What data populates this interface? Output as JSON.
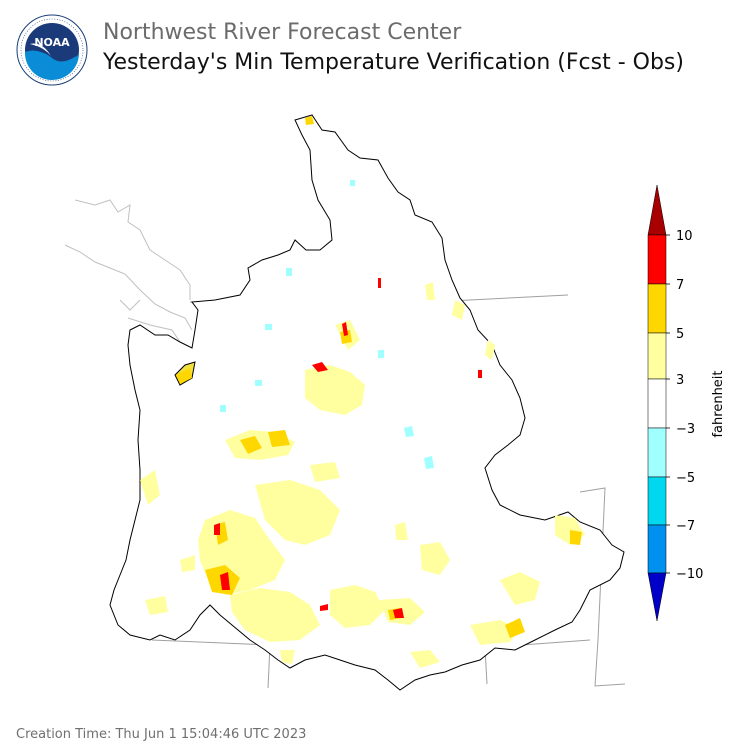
{
  "header": {
    "org_name": "Northwest River Forecast Center",
    "title": "Yesterday's Min Temperature Verification (Fcst - Obs)"
  },
  "logo": {
    "text": "NOAA",
    "icon": "noaa-logo-icon"
  },
  "legend": {
    "unit": "fahrenheit",
    "ticks": [
      "10",
      "7",
      "5",
      "3",
      "−3",
      "−5",
      "−7",
      "−10"
    ],
    "bins": [
      {
        "range": "> 10",
        "color": "#a80000"
      },
      {
        "range": "7 to 10",
        "color": "#ff0000"
      },
      {
        "range": "5 to 7",
        "color": "#ffd700"
      },
      {
        "range": "3 to 5",
        "color": "#ffffa0"
      },
      {
        "range": "-3 to 3",
        "color": "#ffffff"
      },
      {
        "range": "-5 to -3",
        "color": "#a0ffff"
      },
      {
        "range": "-7 to -5",
        "color": "#00d8f0"
      },
      {
        "range": "-10 to -7",
        "color": "#0090f0"
      },
      {
        "range": "< -10",
        "color": "#0000c8"
      }
    ]
  },
  "footer": {
    "creation_time": "Creation Time: Thu Jun 1 15:04:46 UTC 2023"
  }
}
